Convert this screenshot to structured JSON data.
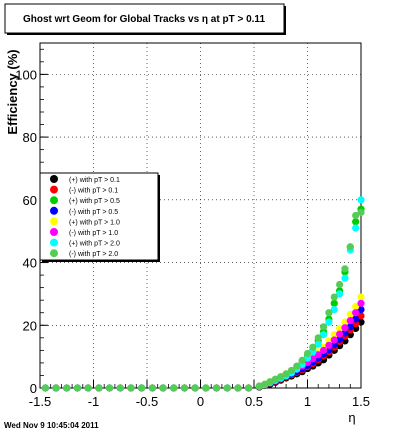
{
  "chart_data": {
    "type": "scatter",
    "title": "Ghost wrt Geom for Global Tracks vs    η at pT > 0.11",
    "xlabel": "η",
    "ylabel": "Efficiency (%)",
    "xlim": [
      -1.5,
      1.5
    ],
    "ylim": [
      0,
      110
    ],
    "xticks": [
      "-1.5",
      "-1",
      "-0.5",
      "0",
      "0.5",
      "1",
      "1.5"
    ],
    "yticks": [
      "0",
      "20",
      "40",
      "60",
      "80",
      "100"
    ],
    "grid": true,
    "legend_position": "left-middle",
    "timestamp": "Wed Nov  9 10:45:04 2011",
    "x": [
      -1.45,
      -1.35,
      -1.25,
      -1.15,
      -1.05,
      -0.95,
      -0.85,
      -0.75,
      -0.65,
      -0.55,
      -0.45,
      -0.35,
      -0.25,
      -0.15,
      -0.05,
      0.05,
      0.15,
      0.25,
      0.35,
      0.45,
      0.55,
      0.6,
      0.65,
      0.7,
      0.75,
      0.8,
      0.85,
      0.9,
      0.95,
      1.0,
      1.05,
      1.1,
      1.15,
      1.2,
      1.25,
      1.3,
      1.35,
      1.4,
      1.45,
      1.5
    ],
    "series": [
      {
        "name": "(+) with pT > 0.1",
        "color": "#000000",
        "values": [
          0,
          0,
          0,
          0,
          0,
          0,
          0,
          0,
          0,
          0,
          0,
          0,
          0,
          0,
          0,
          0,
          0,
          0,
          0,
          0,
          0.3,
          0.8,
          1.2,
          1.8,
          2.5,
          3.2,
          3.8,
          4.5,
          5.2,
          6.2,
          7,
          8,
          9,
          10.5,
          12,
          13.5,
          15,
          17,
          19,
          21
        ]
      },
      {
        "name": "(-) with pT > 0.1",
        "color": "#ff0000",
        "values": [
          0,
          0,
          0,
          0,
          0,
          0,
          0,
          0,
          0,
          0,
          0,
          0,
          0,
          0,
          0,
          0,
          0,
          0,
          0,
          0,
          0.4,
          0.9,
          1.5,
          2,
          2.8,
          3.5,
          4.2,
          5,
          5.8,
          6.8,
          7.8,
          9,
          10.2,
          11.5,
          13,
          14.8,
          16.5,
          18.5,
          20.5,
          23
        ]
      },
      {
        "name": "(+) with pT > 0.5",
        "color": "#00cc00",
        "values": [
          0,
          0,
          0,
          0,
          0,
          0,
          0,
          0,
          0,
          0,
          0,
          0,
          0,
          0,
          0,
          0,
          0,
          0,
          0,
          0,
          0.5,
          1,
          1.8,
          2.5,
          3.2,
          4,
          5,
          6.5,
          8,
          10,
          12,
          15,
          18,
          22,
          27,
          31,
          37,
          45,
          53,
          57
        ]
      },
      {
        "name": "(-) with pT > 0.5",
        "color": "#0000ff",
        "values": [
          0,
          0,
          0,
          0,
          0,
          0,
          0,
          0,
          0,
          0,
          0,
          0,
          0,
          0,
          0,
          0,
          0,
          0,
          0,
          0,
          0.5,
          1,
          1.6,
          2.2,
          3,
          3.8,
          4.5,
          5.3,
          6.2,
          7.2,
          8.3,
          9.5,
          10.8,
          12.2,
          13.8,
          15.5,
          17.5,
          19.5,
          22,
          25
        ]
      },
      {
        "name": "(+) with pT > 1.0",
        "color": "#ffff00",
        "values": [
          0,
          0,
          0,
          0,
          0,
          0,
          0,
          0,
          0,
          0,
          0,
          0,
          0,
          0,
          0,
          0,
          0,
          0,
          0,
          0,
          0.6,
          1.2,
          2,
          2.8,
          3.6,
          4.5,
          5.5,
          6.5,
          7.5,
          8.8,
          10,
          11.5,
          13,
          15,
          17,
          19,
          21,
          23.5,
          26,
          29
        ]
      },
      {
        "name": "(-) with pT > 1.0",
        "color": "#ff00ff",
        "values": [
          0,
          0,
          0,
          0,
          0,
          0,
          0,
          0,
          0,
          0,
          0,
          0,
          0,
          0,
          0,
          0,
          0,
          0,
          0,
          0,
          0.6,
          1.1,
          1.9,
          2.6,
          3.4,
          4.2,
          5.1,
          6,
          7,
          8.1,
          9.3,
          10.6,
          12,
          13.6,
          15.3,
          17.2,
          19.2,
          21.5,
          24,
          27
        ]
      },
      {
        "name": "(+) with pT > 2.0",
        "color": "#00ffff",
        "values": [
          0,
          0,
          0,
          0,
          0,
          0,
          0,
          0,
          0,
          0,
          0,
          0,
          0,
          0,
          0,
          0,
          0,
          0,
          0,
          0,
          0.5,
          1,
          1.7,
          2.4,
          3.1,
          3.9,
          4.8,
          6,
          7.5,
          9.5,
          11.5,
          14,
          17,
          21,
          25,
          30,
          35,
          44,
          51,
          60
        ]
      },
      {
        "name": "(-) with pT > 2.0",
        "color": "#55cc55",
        "values": [
          0,
          0,
          0,
          0,
          0,
          0,
          0,
          0,
          0,
          0,
          0,
          0,
          0,
          0,
          0,
          0,
          0,
          0,
          0,
          0,
          0.6,
          1.2,
          2,
          2.8,
          3.6,
          4.5,
          5.6,
          7,
          8.8,
          11,
          13,
          16,
          19.5,
          24,
          29,
          33,
          38,
          45,
          55,
          56
        ]
      }
    ]
  }
}
